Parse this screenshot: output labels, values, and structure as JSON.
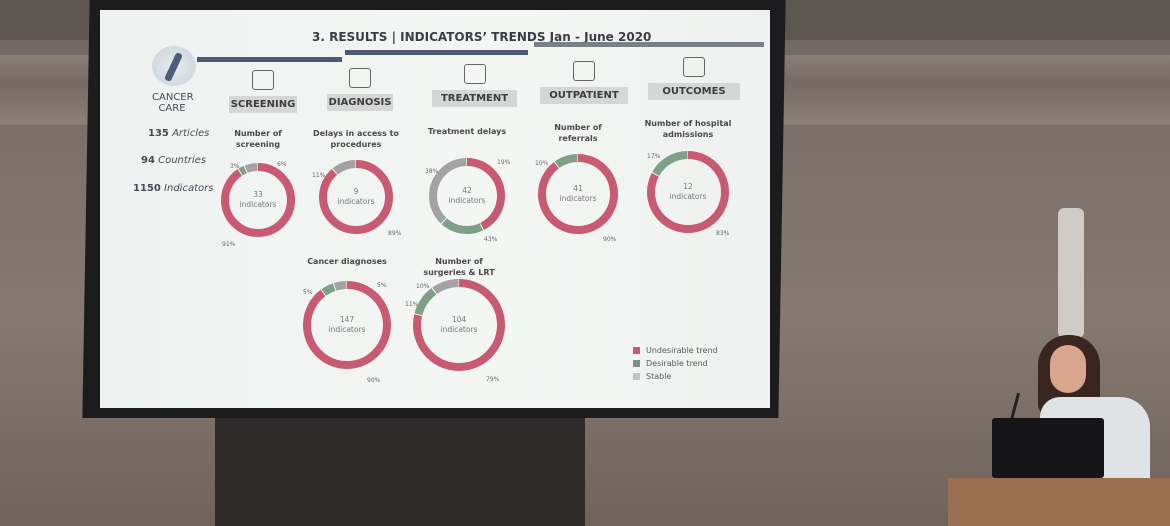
{
  "slide": {
    "title": "3. RESULTS | INDICATORS’ TRENDS Jan - June 2020",
    "side": {
      "heading_line1": "CANCER",
      "heading_line2": "CARE",
      "stats": [
        {
          "num": "135",
          "label": "Articles"
        },
        {
          "num": "94",
          "label": "Countries"
        },
        {
          "num": "1150",
          "label": "Indicators"
        }
      ]
    },
    "categories": [
      {
        "label": "SCREENING",
        "icon": "hospital-icon"
      },
      {
        "label": "DIAGNOSIS",
        "icon": "stethoscope-icon"
      },
      {
        "label": "TREATMENT",
        "icon": "medicine-icon"
      },
      {
        "label": "OUTPATIENT",
        "icon": "clinic-icon"
      },
      {
        "label": "OUTCOMES",
        "icon": "health-report-icon"
      }
    ]
  },
  "colors": {
    "undesirable": "#c85a72",
    "desirable": "#7f9f86",
    "stable": "#a3a3a3"
  },
  "chart_data": {
    "type": "pie",
    "legend": {
      "position": "bottom-right",
      "entries": [
        "Undesirable trend",
        "Desirable trend",
        "Stable"
      ]
    },
    "charts": [
      {
        "title": "Number of screening",
        "total": "33",
        "unit": "indicators",
        "undesirable": 91,
        "desirable": 3,
        "stable": 6,
        "labels": [
          "91%",
          "3%",
          "6%"
        ]
      },
      {
        "title": "Delays in access to procedures",
        "total": "9",
        "unit": "indicators",
        "undesirable": 89,
        "desirable": 0,
        "stable": 11,
        "labels": [
          "89%",
          "",
          "11%"
        ]
      },
      {
        "title": "Treatment delays",
        "total": "42",
        "unit": "indicators",
        "undesirable": 43,
        "desirable": 19,
        "stable": 38,
        "labels": [
          "43%",
          "19%",
          "38%"
        ]
      },
      {
        "title": "Number of referrals",
        "total": "41",
        "unit": "indicators",
        "undesirable": 90,
        "desirable": 10,
        "stable": 0,
        "labels": [
          "90%",
          "10%",
          ""
        ]
      },
      {
        "title": "Number of hospital admissions",
        "total": "12",
        "unit": "indicators",
        "undesirable": 83,
        "desirable": 17,
        "stable": 0,
        "labels": [
          "83%",
          "17%",
          ""
        ]
      },
      {
        "title": "Cancer diagnoses",
        "total": "147",
        "unit": "indicators",
        "undesirable": 90,
        "desirable": 5,
        "stable": 5,
        "labels": [
          "90%",
          "5%",
          "5%"
        ]
      },
      {
        "title": "Number of surgeries & LRT",
        "total": "104",
        "unit": "indicators",
        "undesirable": 79,
        "desirable": 11,
        "stable": 10,
        "labels": [
          "79%",
          "11%",
          "10%"
        ]
      }
    ]
  }
}
